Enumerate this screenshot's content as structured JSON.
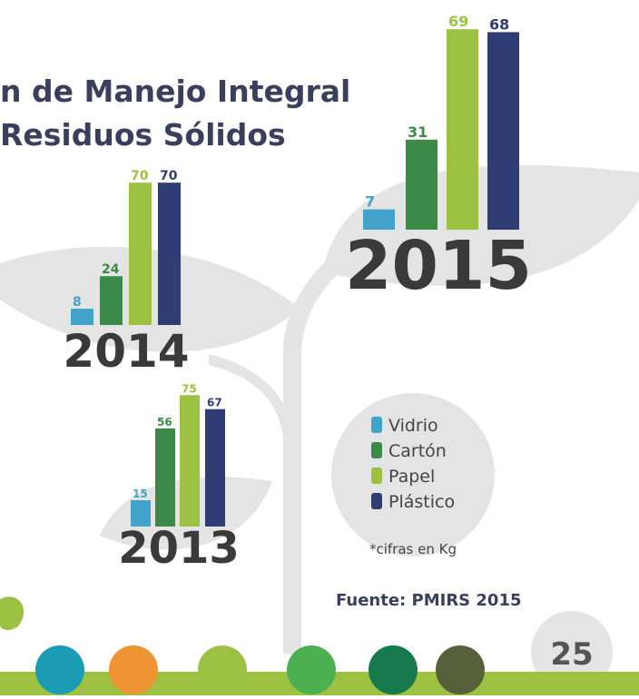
{
  "title": [
    "n de Manejo Integral",
    "Residuos Sólidos"
  ],
  "legend": {
    "series": [
      {
        "name": "Vidrio",
        "color": "#41a3c9"
      },
      {
        "name": "Cartón",
        "color": "#3b8a4a"
      },
      {
        "name": "Papel",
        "color": "#9dc243"
      },
      {
        "name": "Plástico",
        "color": "#2f3d74"
      }
    ]
  },
  "chart_data": [
    {
      "type": "bar",
      "title": "2015",
      "values": [
        7,
        31,
        69,
        68
      ]
    },
    {
      "type": "bar",
      "title": "2014",
      "values": [
        8,
        24,
        70,
        70
      ]
    },
    {
      "type": "bar",
      "title": "2013",
      "values": [
        15,
        56,
        75,
        67
      ]
    }
  ],
  "note": "*cifras en Kg",
  "source": "Fuente: PMIRS 2015",
  "page": "25"
}
